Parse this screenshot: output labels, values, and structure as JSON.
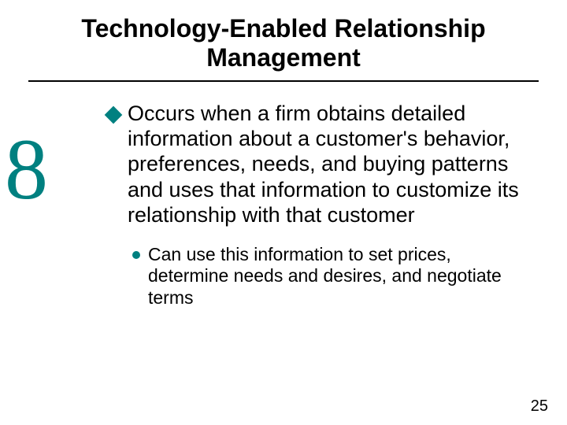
{
  "title": "Technology-Enabled Relationship Management",
  "chapter_number": "8",
  "accent_color": "#008080",
  "background_color": "#ffffff",
  "text_color": "#000000",
  "main_bullet": {
    "text": "Occurs when a firm obtains detailed information about a customer's behavior, preferences, needs, and buying patterns and uses that information to customize its relationship with that customer"
  },
  "sub_bullet": {
    "text": "Can use this information to set prices, determine needs and desires, and negotiate terms"
  },
  "page_number": "25"
}
